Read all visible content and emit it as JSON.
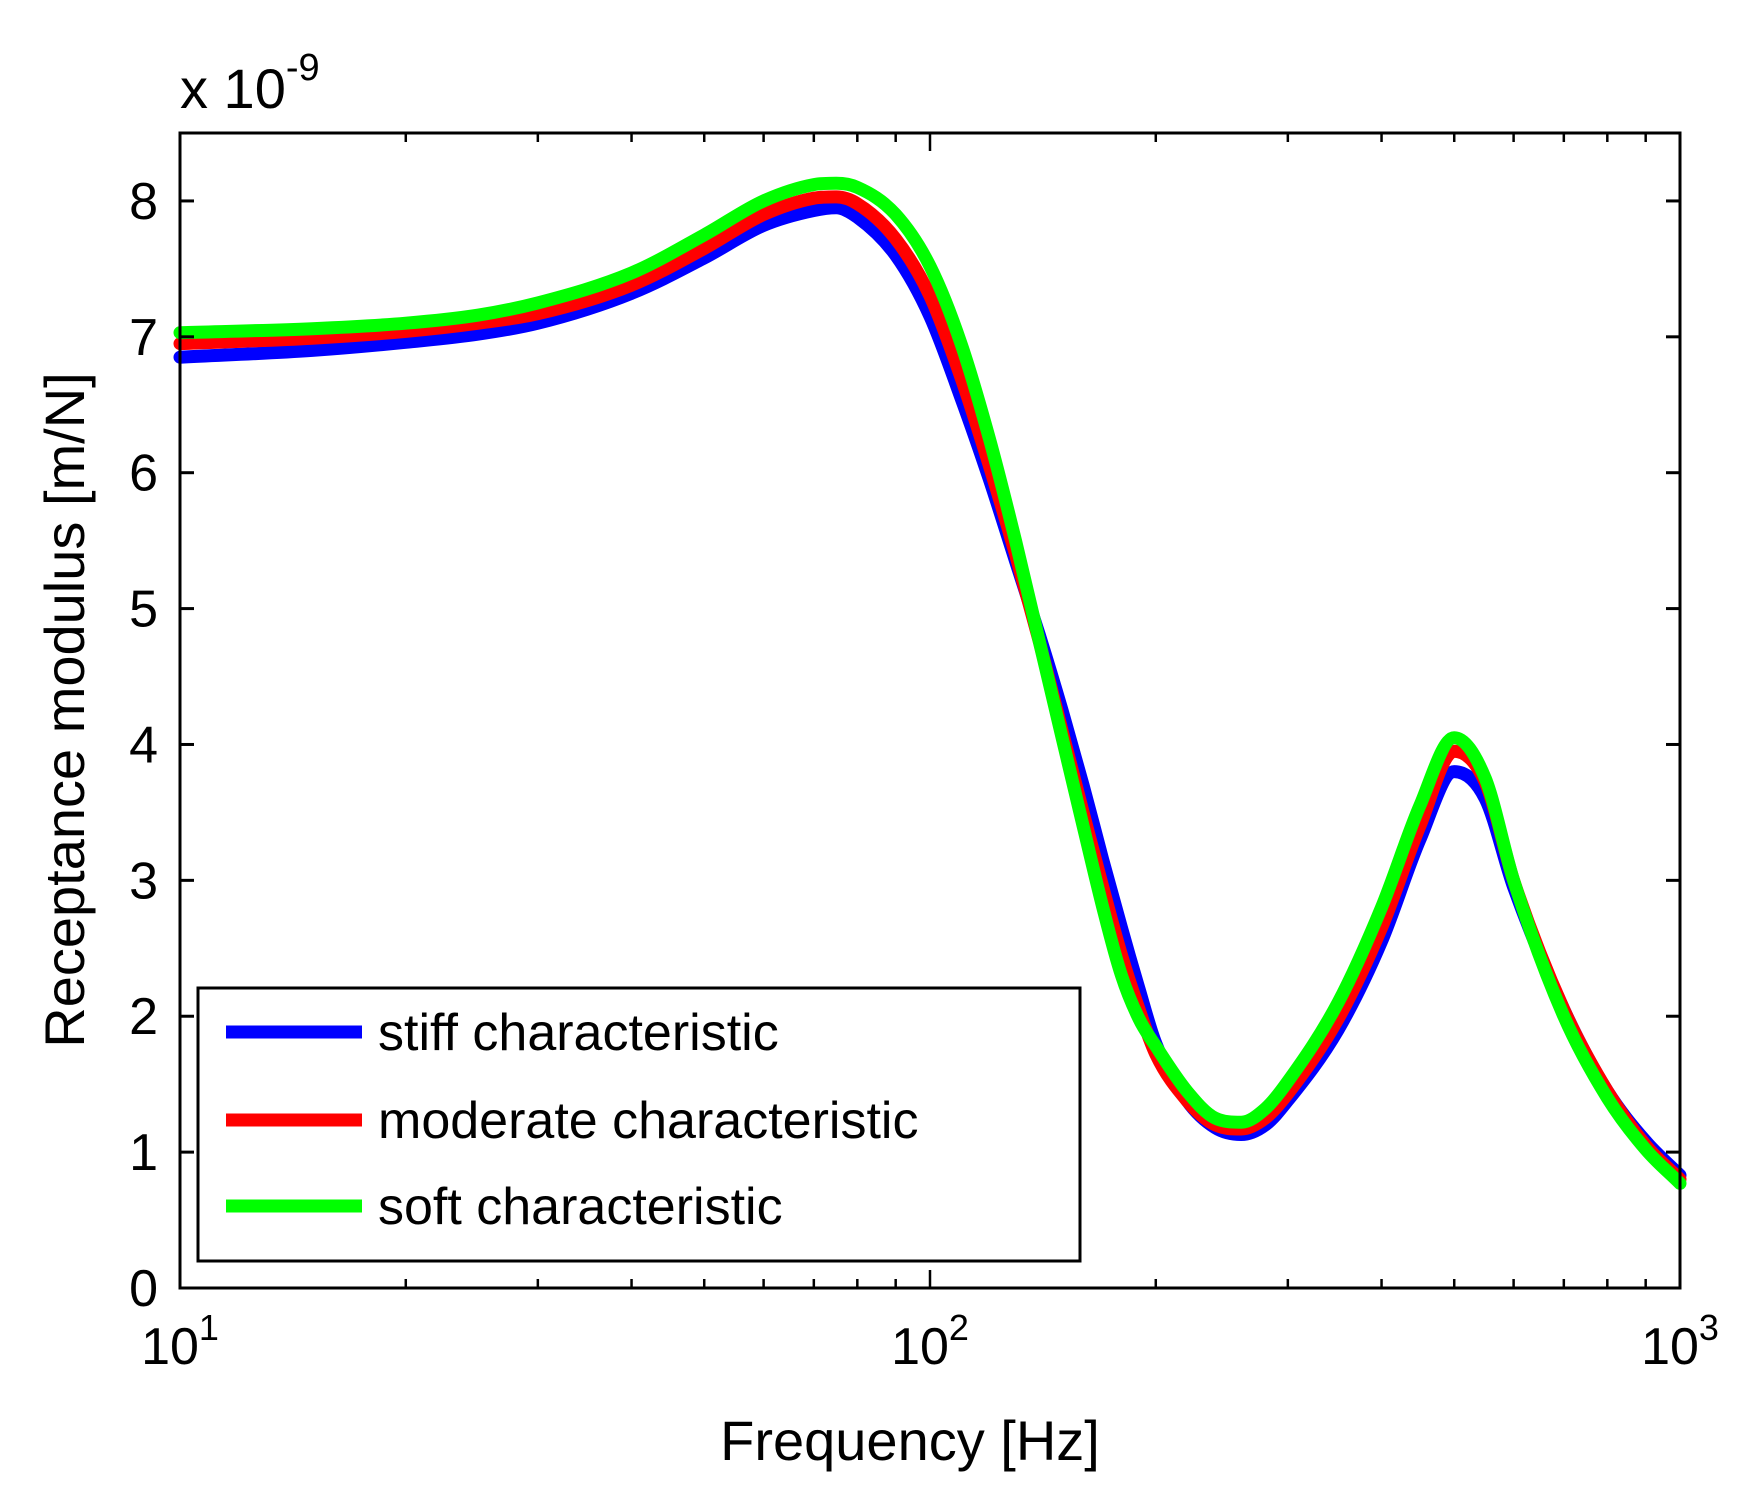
{
  "chart_data": {
    "type": "line",
    "xlabel": "Frequency [Hz]",
    "ylabel": "Receptance modulus [m/N]",
    "x_scale": "log",
    "xlim": [
      10,
      1000
    ],
    "ylim": [
      0,
      8.5
    ],
    "y_exponent_label": "x 10",
    "y_exponent_power": "-9",
    "grid": false,
    "legend_position": "bottom-left",
    "x_ticks": [
      {
        "value": 10,
        "base": "10",
        "exp": "1"
      },
      {
        "value": 100,
        "base": "10",
        "exp": "2"
      },
      {
        "value": 1000,
        "base": "10",
        "exp": "3"
      }
    ],
    "y_ticks": [
      {
        "value": 0,
        "label": "0"
      },
      {
        "value": 1,
        "label": "1"
      },
      {
        "value": 2,
        "label": "2"
      },
      {
        "value": 3,
        "label": "3"
      },
      {
        "value": 4,
        "label": "4"
      },
      {
        "value": 5,
        "label": "5"
      },
      {
        "value": 6,
        "label": "6"
      },
      {
        "value": 7,
        "label": "7"
      },
      {
        "value": 8,
        "label": "8"
      }
    ],
    "series": [
      {
        "name": "stiff characteristic",
        "color": "#0000ff",
        "x": [
          10,
          15,
          20,
          25,
          30,
          40,
          50,
          60,
          70,
          75,
          80,
          90,
          100,
          110,
          120,
          130,
          140,
          150,
          160,
          170,
          180,
          190,
          200,
          220,
          240,
          260,
          280,
          300,
          350,
          400,
          450,
          500,
          550,
          600,
          700,
          800,
          900,
          1000
        ],
        "values": [
          6.85,
          6.9,
          6.96,
          7.02,
          7.1,
          7.32,
          7.58,
          7.82,
          7.93,
          7.95,
          7.88,
          7.6,
          7.15,
          6.55,
          5.95,
          5.35,
          4.8,
          4.25,
          3.7,
          3.15,
          2.65,
          2.2,
          1.8,
          1.38,
          1.18,
          1.13,
          1.2,
          1.38,
          1.9,
          2.55,
          3.3,
          3.8,
          3.6,
          2.95,
          2.05,
          1.45,
          1.08,
          0.83
        ]
      },
      {
        "name": "moderate characteristic",
        "color": "#ff0000",
        "x": [
          10,
          15,
          20,
          25,
          30,
          40,
          50,
          60,
          70,
          75,
          80,
          90,
          100,
          110,
          120,
          130,
          140,
          150,
          160,
          170,
          180,
          190,
          200,
          220,
          240,
          260,
          280,
          300,
          350,
          400,
          450,
          500,
          550,
          600,
          700,
          800,
          900,
          1000
        ],
        "values": [
          6.95,
          6.99,
          7.04,
          7.1,
          7.17,
          7.38,
          7.65,
          7.9,
          8.02,
          8.03,
          7.98,
          7.72,
          7.3,
          6.7,
          6.05,
          5.4,
          4.75,
          4.1,
          3.5,
          2.95,
          2.45,
          2.05,
          1.72,
          1.38,
          1.2,
          1.17,
          1.25,
          1.43,
          1.98,
          2.65,
          3.4,
          3.95,
          3.72,
          3.0,
          2.05,
          1.45,
          1.05,
          0.8
        ]
      },
      {
        "name": "soft characteristic",
        "color": "#00ff00",
        "x": [
          10,
          15,
          20,
          25,
          30,
          40,
          50,
          60,
          70,
          75,
          80,
          90,
          100,
          110,
          120,
          130,
          140,
          150,
          160,
          170,
          180,
          190,
          200,
          220,
          240,
          260,
          280,
          300,
          350,
          400,
          450,
          500,
          550,
          600,
          700,
          800,
          900,
          1000
        ],
        "values": [
          7.03,
          7.06,
          7.1,
          7.16,
          7.25,
          7.47,
          7.75,
          8.0,
          8.12,
          8.13,
          8.1,
          7.9,
          7.52,
          6.95,
          6.25,
          5.5,
          4.75,
          4.05,
          3.4,
          2.8,
          2.3,
          1.98,
          1.78,
          1.45,
          1.25,
          1.22,
          1.32,
          1.52,
          2.1,
          2.8,
          3.55,
          4.05,
          3.75,
          3.0,
          2.0,
          1.4,
          1.02,
          0.77
        ]
      }
    ]
  }
}
